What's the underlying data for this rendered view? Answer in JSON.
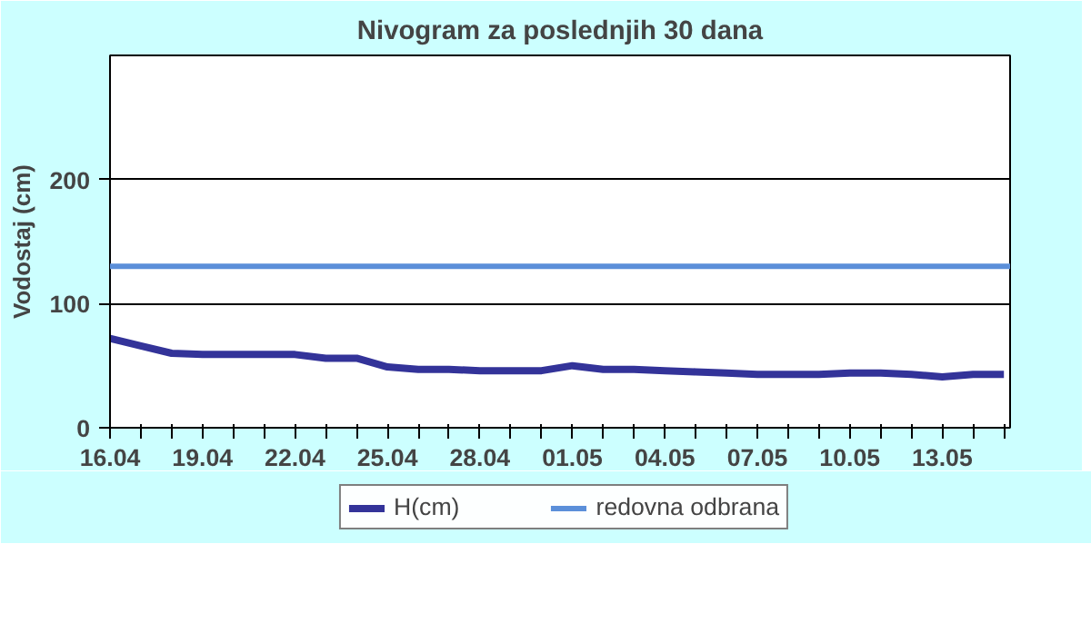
{
  "chart_data": {
    "type": "line",
    "title": "Nivogram za poslednjih 30 dana",
    "ylabel": "Vodostaj (cm)",
    "categories": [
      "16.04",
      null,
      null,
      "19.04",
      null,
      null,
      "22.04",
      null,
      null,
      "25.04",
      null,
      null,
      "28.04",
      null,
      null,
      "01.05",
      null,
      null,
      "04.05",
      null,
      null,
      "07.05",
      null,
      null,
      "10.05",
      null,
      null,
      "13.05",
      null,
      null
    ],
    "series": [
      {
        "name": "H(cm)",
        "color": "#333399",
        "values": [
          72,
          66,
          60,
          59,
          59,
          59,
          59,
          56,
          56,
          49,
          47,
          47,
          46,
          46,
          46,
          50,
          47,
          47,
          46,
          45,
          44,
          43,
          43,
          43,
          44,
          44,
          43,
          41,
          43,
          43
        ]
      }
    ],
    "ref_lines": [
      {
        "axis": "y",
        "value": 130,
        "label": "redovna odbrana",
        "color": "#5b8fd9"
      }
    ],
    "ylim": [
      0,
      300
    ],
    "yticks": [
      0,
      100,
      200
    ],
    "grid": "y",
    "legend": "bottom",
    "line_style": "solid"
  }
}
